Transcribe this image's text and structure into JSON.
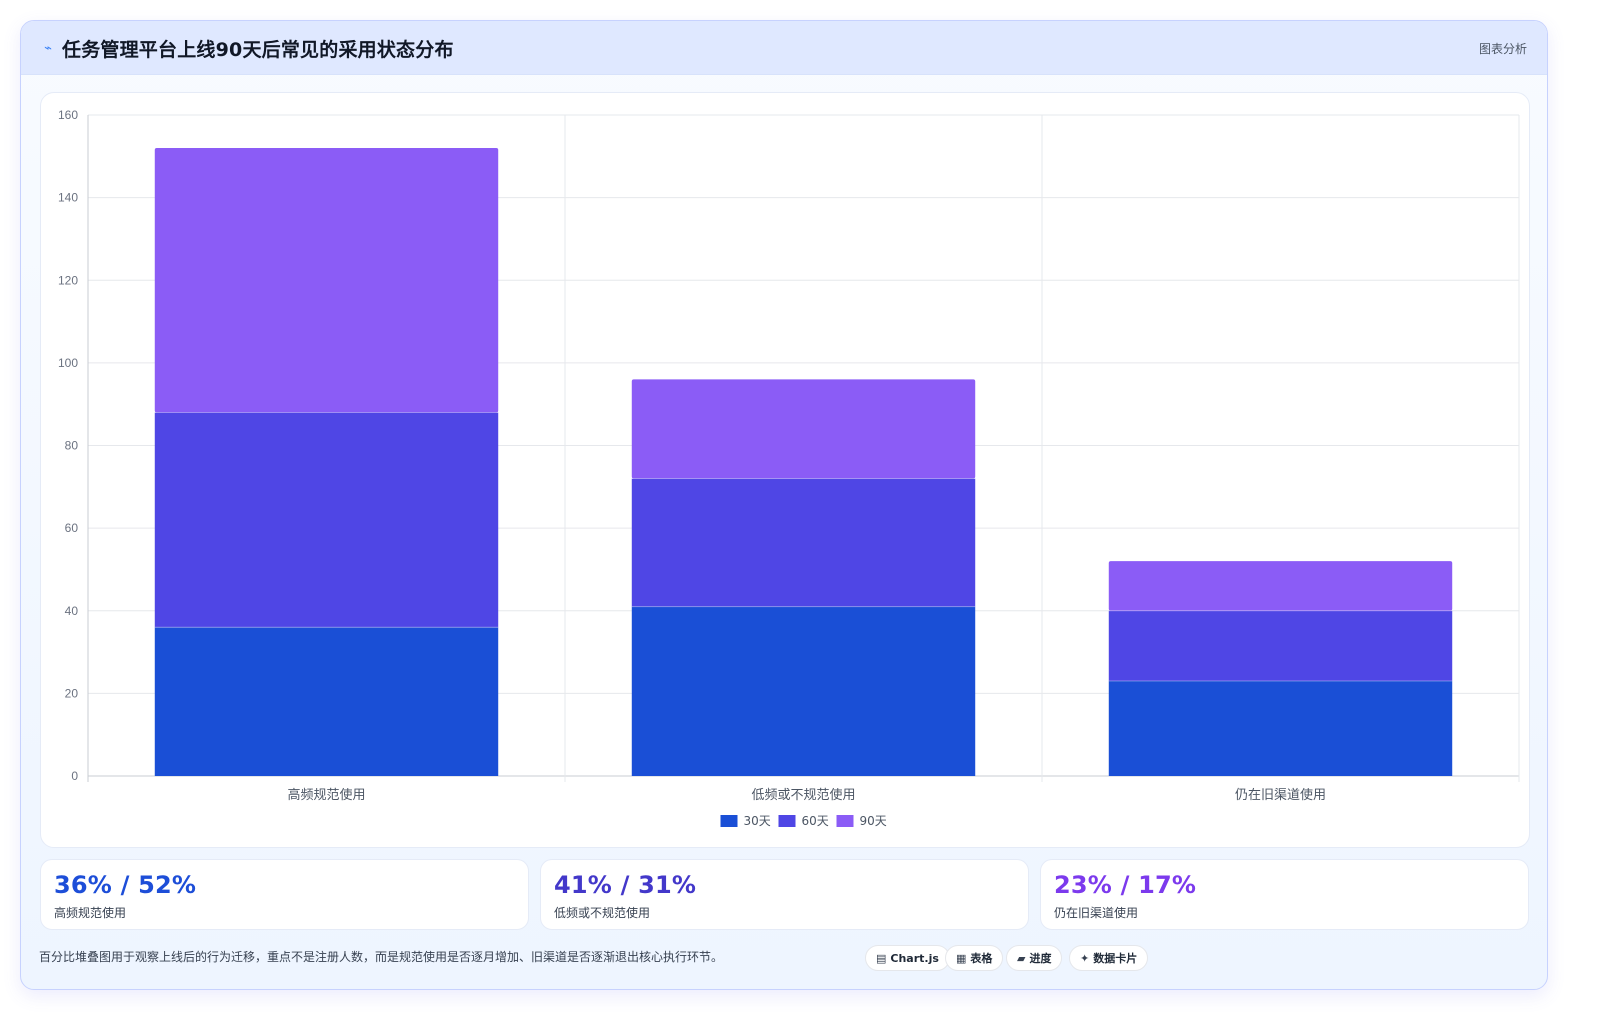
{
  "header": {
    "icon": "trend-icon",
    "title": "任务管理平台上线90天后常见的采用状态分布",
    "tag": "图表分析"
  },
  "chart_data": {
    "type": "bar",
    "stacked": true,
    "categories": [
      "高频规范使用",
      "低频或不规范使用",
      "仍在旧渠道使用"
    ],
    "series": [
      {
        "name": "30天",
        "values": [
          36,
          41,
          23
        ],
        "color": "#1a4fd6"
      },
      {
        "name": "60天",
        "values": [
          52,
          31,
          17
        ],
        "color": "#4f46e5"
      },
      {
        "name": "90天",
        "values": [
          64,
          24,
          12
        ],
        "color": "#8b5cf6"
      }
    ],
    "title": "",
    "xlabel": "",
    "ylabel": "",
    "ylim": [
      0,
      160
    ],
    "yticks": [
      0,
      20,
      40,
      60,
      80,
      100,
      120,
      140,
      160
    ],
    "grid": true,
    "legend": "bottom-center"
  },
  "stats": [
    {
      "value": "36% / 52%",
      "label": "高频规范使用",
      "color": "#1d4ed8"
    },
    {
      "value": "41% / 31%",
      "label": "低频或不规范使用",
      "color": "#4338ca"
    },
    {
      "value": "23% / 17%",
      "label": "仍在旧渠道使用",
      "color": "#7c3aed"
    }
  ],
  "footnote": "百分比堆叠图用于观察上线后的行为迁移，重点不是注册人数，而是规范使用是否逐月增加、旧渠道是否逐渐退出核心执行环节。",
  "chips": [
    {
      "icon": "▤",
      "label": "Chart.js"
    },
    {
      "icon": "▦",
      "label": "表格"
    },
    {
      "icon": "▰",
      "label": "进度"
    },
    {
      "icon": "✦",
      "label": "数据卡片"
    }
  ]
}
